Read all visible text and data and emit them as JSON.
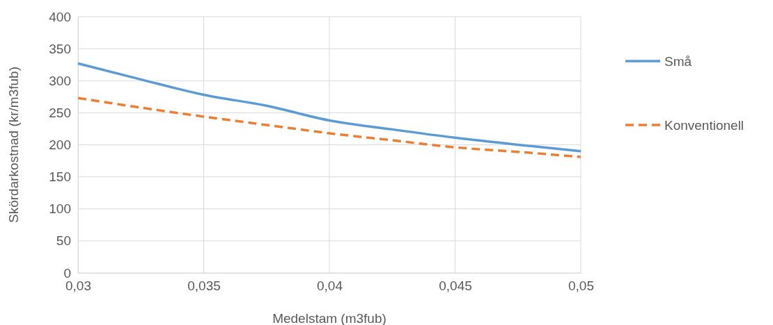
{
  "chart_data": {
    "type": "line",
    "xlabel": "Medelstam (m3fub)",
    "ylabel": "Skördarkostnad (kr/m3fub)",
    "xlim": [
      0.03,
      0.05
    ],
    "xticks": [
      {
        "value": 0.03,
        "label": "0,03"
      },
      {
        "value": 0.035,
        "label": "0,035"
      },
      {
        "value": 0.04,
        "label": "0,04"
      },
      {
        "value": 0.045,
        "label": "0,045"
      },
      {
        "value": 0.05,
        "label": "0,05"
      }
    ],
    "ylim": [
      0,
      400
    ],
    "yticks": [
      0,
      50,
      100,
      150,
      200,
      250,
      300,
      350,
      400
    ],
    "grid": true,
    "legend": "right",
    "series": [
      {
        "name": "Små",
        "color": "#5b9bd5",
        "line_style": "solid",
        "x": [
          0.03,
          0.0325,
          0.035,
          0.0375,
          0.04,
          0.0425,
          0.045,
          0.0475,
          0.05
        ],
        "values": [
          327,
          302,
          278,
          261,
          238,
          224,
          211,
          200,
          190
        ]
      },
      {
        "name": "Konventionell",
        "color": "#ed7d31",
        "line_style": "dashed",
        "x": [
          0.03,
          0.0325,
          0.035,
          0.0375,
          0.04,
          0.0425,
          0.045,
          0.0475,
          0.05
        ],
        "values": [
          273,
          258,
          244,
          231,
          218,
          207,
          196,
          189,
          181
        ]
      }
    ]
  }
}
